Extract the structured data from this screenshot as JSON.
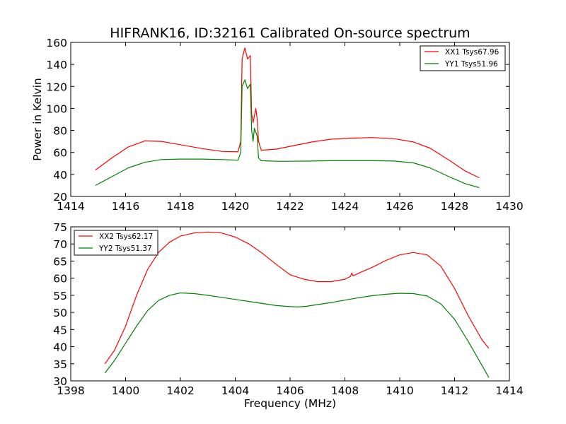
{
  "figure": {
    "title": "HIFRANK16, ID:32161 Calibrated On-source spectrum"
  },
  "colors": {
    "red": "#ff0000",
    "green": "#008000",
    "axis": "#000000",
    "background": "#ffffff"
  },
  "chart_data": [
    {
      "type": "line",
      "title": "HIFRANK16, ID:32161 Calibrated On-source spectrum",
      "xlabel": "",
      "ylabel": "Power in Kelvin",
      "xlim": [
        1414,
        1430
      ],
      "ylim": [
        20,
        160
      ],
      "xticks": [
        1414,
        1416,
        1418,
        1420,
        1422,
        1424,
        1426,
        1428,
        1430
      ],
      "xtick_labels": [
        "1414",
        "1416",
        "1418",
        "1420",
        "1422",
        "1424",
        "1426",
        "1428",
        "1430"
      ],
      "yticks": [
        20,
        40,
        60,
        80,
        100,
        120,
        140,
        160
      ],
      "ytick_labels": [
        "20",
        "40",
        "60",
        "80",
        "100",
        "120",
        "140",
        "160"
      ],
      "grid": false,
      "legend_position": "upper right",
      "series": [
        {
          "name": "XX1 Tsys67.96",
          "color": "#ff0000",
          "points": [
            [
              1414.9,
              44
            ],
            [
              1415.5,
              55
            ],
            [
              1416.1,
              65
            ],
            [
              1416.7,
              70.5
            ],
            [
              1417.3,
              70
            ],
            [
              1418,
              67
            ],
            [
              1418.8,
              63.5
            ],
            [
              1419.5,
              61
            ],
            [
              1420.1,
              60.5
            ],
            [
              1420.2,
              70
            ],
            [
              1420.25,
              145
            ],
            [
              1420.35,
              155
            ],
            [
              1420.45,
              145
            ],
            [
              1420.55,
              148
            ],
            [
              1420.6,
              95
            ],
            [
              1420.65,
              87
            ],
            [
              1420.75,
              100
            ],
            [
              1420.8,
              90
            ],
            [
              1420.85,
              70
            ],
            [
              1420.95,
              62
            ],
            [
              1421.5,
              63
            ],
            [
              1422,
              65.5
            ],
            [
              1422.8,
              69.5
            ],
            [
              1423.5,
              72
            ],
            [
              1424.2,
              73
            ],
            [
              1425,
              73.5
            ],
            [
              1425.8,
              72.5
            ],
            [
              1426.5,
              69.5
            ],
            [
              1427.1,
              64
            ],
            [
              1427.8,
              53
            ],
            [
              1428.4,
              43
            ],
            [
              1428.9,
              37
            ]
          ]
        },
        {
          "name": "YY1 Tsys51.96",
          "color": "#008000",
          "points": [
            [
              1414.9,
              30
            ],
            [
              1415.5,
              38
            ],
            [
              1416.1,
              46
            ],
            [
              1416.7,
              51
            ],
            [
              1417.3,
              53.5
            ],
            [
              1418,
              54
            ],
            [
              1418.8,
              54
            ],
            [
              1419.5,
              53.5
            ],
            [
              1420.1,
              53
            ],
            [
              1420.2,
              60
            ],
            [
              1420.25,
              120
            ],
            [
              1420.35,
              126
            ],
            [
              1420.45,
              118
            ],
            [
              1420.55,
              122
            ],
            [
              1420.6,
              80
            ],
            [
              1420.65,
              70
            ],
            [
              1420.7,
              82
            ],
            [
              1420.8,
              75
            ],
            [
              1420.85,
              55
            ],
            [
              1420.95,
              52.5
            ],
            [
              1421.5,
              52
            ],
            [
              1422,
              52
            ],
            [
              1422.8,
              52.2
            ],
            [
              1423.5,
              52.5
            ],
            [
              1424.2,
              52.5
            ],
            [
              1425,
              52.5
            ],
            [
              1425.8,
              52.2
            ],
            [
              1426.5,
              50.5
            ],
            [
              1427.1,
              46
            ],
            [
              1427.8,
              38
            ],
            [
              1428.4,
              31.5
            ],
            [
              1428.9,
              28
            ]
          ]
        }
      ]
    },
    {
      "type": "line",
      "title": "",
      "xlabel": "Frequency (MHz)",
      "ylabel": "",
      "xlim": [
        1398,
        1414
      ],
      "ylim": [
        30,
        75
      ],
      "xticks": [
        1398,
        1400,
        1402,
        1404,
        1406,
        1408,
        1410,
        1412,
        1414
      ],
      "xtick_labels": [
        "1398",
        "1400",
        "1402",
        "1404",
        "1406",
        "1408",
        "1410",
        "1412",
        "1414"
      ],
      "yticks": [
        30,
        35,
        40,
        45,
        50,
        55,
        60,
        65,
        70,
        75
      ],
      "ytick_labels": [
        "30",
        "35",
        "40",
        "45",
        "50",
        "55",
        "60",
        "65",
        "70",
        "75"
      ],
      "grid": false,
      "legend_position": "upper left",
      "series": [
        {
          "name": "XX2 Tsys62.17",
          "color": "#ff0000",
          "points": [
            [
              1399.25,
              35
            ],
            [
              1399.6,
              39
            ],
            [
              1400,
              46
            ],
            [
              1400.4,
              55
            ],
            [
              1400.8,
              62.5
            ],
            [
              1401.2,
              67.5
            ],
            [
              1401.6,
              70.5
            ],
            [
              1402,
              72.3
            ],
            [
              1402.5,
              73.2
            ],
            [
              1403,
              73.5
            ],
            [
              1403.5,
              73.2
            ],
            [
              1404,
              72
            ],
            [
              1404.5,
              70
            ],
            [
              1405,
              67.2
            ],
            [
              1405.5,
              64
            ],
            [
              1406,
              61
            ],
            [
              1406.5,
              59.7
            ],
            [
              1407,
              59
            ],
            [
              1407.5,
              59
            ],
            [
              1408,
              59.7
            ],
            [
              1408.2,
              60.5
            ],
            [
              1408.25,
              61.5
            ],
            [
              1408.3,
              60.7
            ],
            [
              1408.6,
              61.8
            ],
            [
              1409,
              63.2
            ],
            [
              1409.5,
              65.2
            ],
            [
              1410,
              66.8
            ],
            [
              1410.5,
              67.5
            ],
            [
              1411,
              66.8
            ],
            [
              1411.5,
              63.5
            ],
            [
              1412,
              57
            ],
            [
              1412.5,
              49
            ],
            [
              1413,
              42
            ],
            [
              1413.25,
              39.5
            ]
          ]
        },
        {
          "name": "YY2 Tsys51.37",
          "color": "#008000",
          "points": [
            [
              1399.25,
              32.3
            ],
            [
              1399.6,
              36
            ],
            [
              1400,
              41
            ],
            [
              1400.4,
              46
            ],
            [
              1400.8,
              50.5
            ],
            [
              1401.2,
              53.5
            ],
            [
              1401.6,
              55
            ],
            [
              1402,
              55.7
            ],
            [
              1402.5,
              55.5
            ],
            [
              1403,
              55
            ],
            [
              1403.5,
              54.4
            ],
            [
              1404,
              53.8
            ],
            [
              1404.5,
              53.2
            ],
            [
              1405,
              52.6
            ],
            [
              1405.5,
              52
            ],
            [
              1406,
              51.7
            ],
            [
              1406.3,
              51.6
            ],
            [
              1406.6,
              51.8
            ],
            [
              1407,
              52.3
            ],
            [
              1407.5,
              52.9
            ],
            [
              1408,
              53.6
            ],
            [
              1408.5,
              54.3
            ],
            [
              1409,
              54.9
            ],
            [
              1409.5,
              55.3
            ],
            [
              1410,
              55.6
            ],
            [
              1410.5,
              55.5
            ],
            [
              1411,
              54.8
            ],
            [
              1411.5,
              52.5
            ],
            [
              1412,
              48
            ],
            [
              1412.5,
              41.5
            ],
            [
              1413,
              34.5
            ],
            [
              1413.25,
              31
            ]
          ]
        }
      ]
    }
  ]
}
